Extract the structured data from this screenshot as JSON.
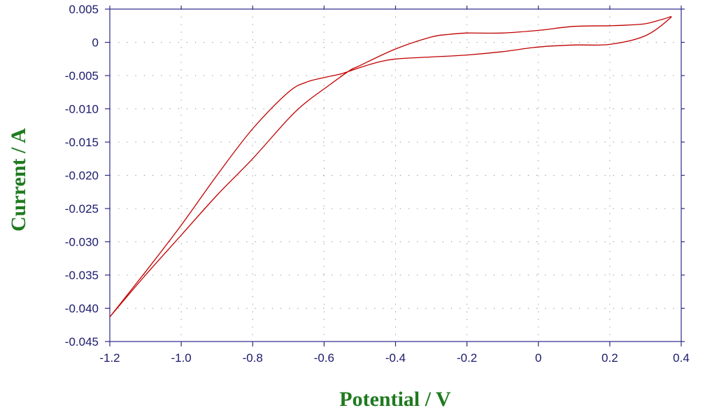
{
  "colors": {
    "curve": "#c00000",
    "axis_title": "#1f7a1f",
    "tick_text": "#1a1a6e",
    "frame": "#2a2a88",
    "grid": "#8a8a8a"
  },
  "chart_data": {
    "type": "line",
    "title": "",
    "xlabel": "Potential / V",
    "ylabel": "Current / A",
    "xlim": [
      -1.2,
      0.4
    ],
    "ylim": [
      -0.045,
      0.005
    ],
    "x_ticks": [
      -1.2,
      -1.0,
      -0.8,
      -0.6,
      -0.4,
      -0.2,
      0,
      0.2,
      0.4
    ],
    "x_tick_labels": [
      "-1.2",
      "-1.0",
      "-0.8",
      "-0.6",
      "-0.4",
      "-0.2",
      "0",
      "0.2",
      "0.4"
    ],
    "y_ticks": [
      0.005,
      0,
      -0.005,
      -0.01,
      -0.015,
      -0.02,
      -0.025,
      -0.03,
      -0.035,
      -0.04,
      -0.045
    ],
    "y_tick_labels": [
      "0.005",
      "0",
      "-0.005",
      "-0.010",
      "-0.015",
      "-0.020",
      "-0.025",
      "-0.030",
      "-0.035",
      "-0.040",
      "-0.045"
    ],
    "grid": true,
    "grid_style": "dotted",
    "series": [
      {
        "color": "#c00000",
        "x": [
          -1.2,
          -1.1,
          -1.0,
          -0.9,
          -0.8,
          -0.7,
          -0.65,
          -0.6,
          -0.55,
          -0.5,
          -0.45,
          -0.4,
          -0.3,
          -0.2,
          -0.1,
          0,
          0.1,
          0.2,
          0.3,
          0.37,
          0.35,
          0.3,
          0.25,
          0.2,
          0.1,
          0,
          -0.1,
          -0.2,
          -0.25,
          -0.3,
          -0.4,
          -0.5,
          -0.53,
          -0.6,
          -0.65,
          -0.7,
          -0.8,
          -0.9,
          -1.0,
          -1.1,
          -1.2
        ],
        "y": [
          -0.0413,
          -0.0345,
          -0.0275,
          -0.02,
          -0.013,
          -0.0075,
          -0.006,
          -0.0053,
          -0.0047,
          -0.0038,
          -0.003,
          -0.0025,
          -0.0022,
          -0.0019,
          -0.0014,
          -0.0007,
          -0.0004,
          -0.0003,
          0.001,
          0.0037,
          0.0035,
          0.0028,
          0.0026,
          0.0025,
          0.0024,
          0.0018,
          0.0014,
          0.0014,
          0.0012,
          0.0008,
          -0.001,
          -0.0035,
          -0.0043,
          -0.007,
          -0.009,
          -0.0115,
          -0.0175,
          -0.023,
          -0.029,
          -0.035,
          -0.0413
        ]
      }
    ]
  }
}
